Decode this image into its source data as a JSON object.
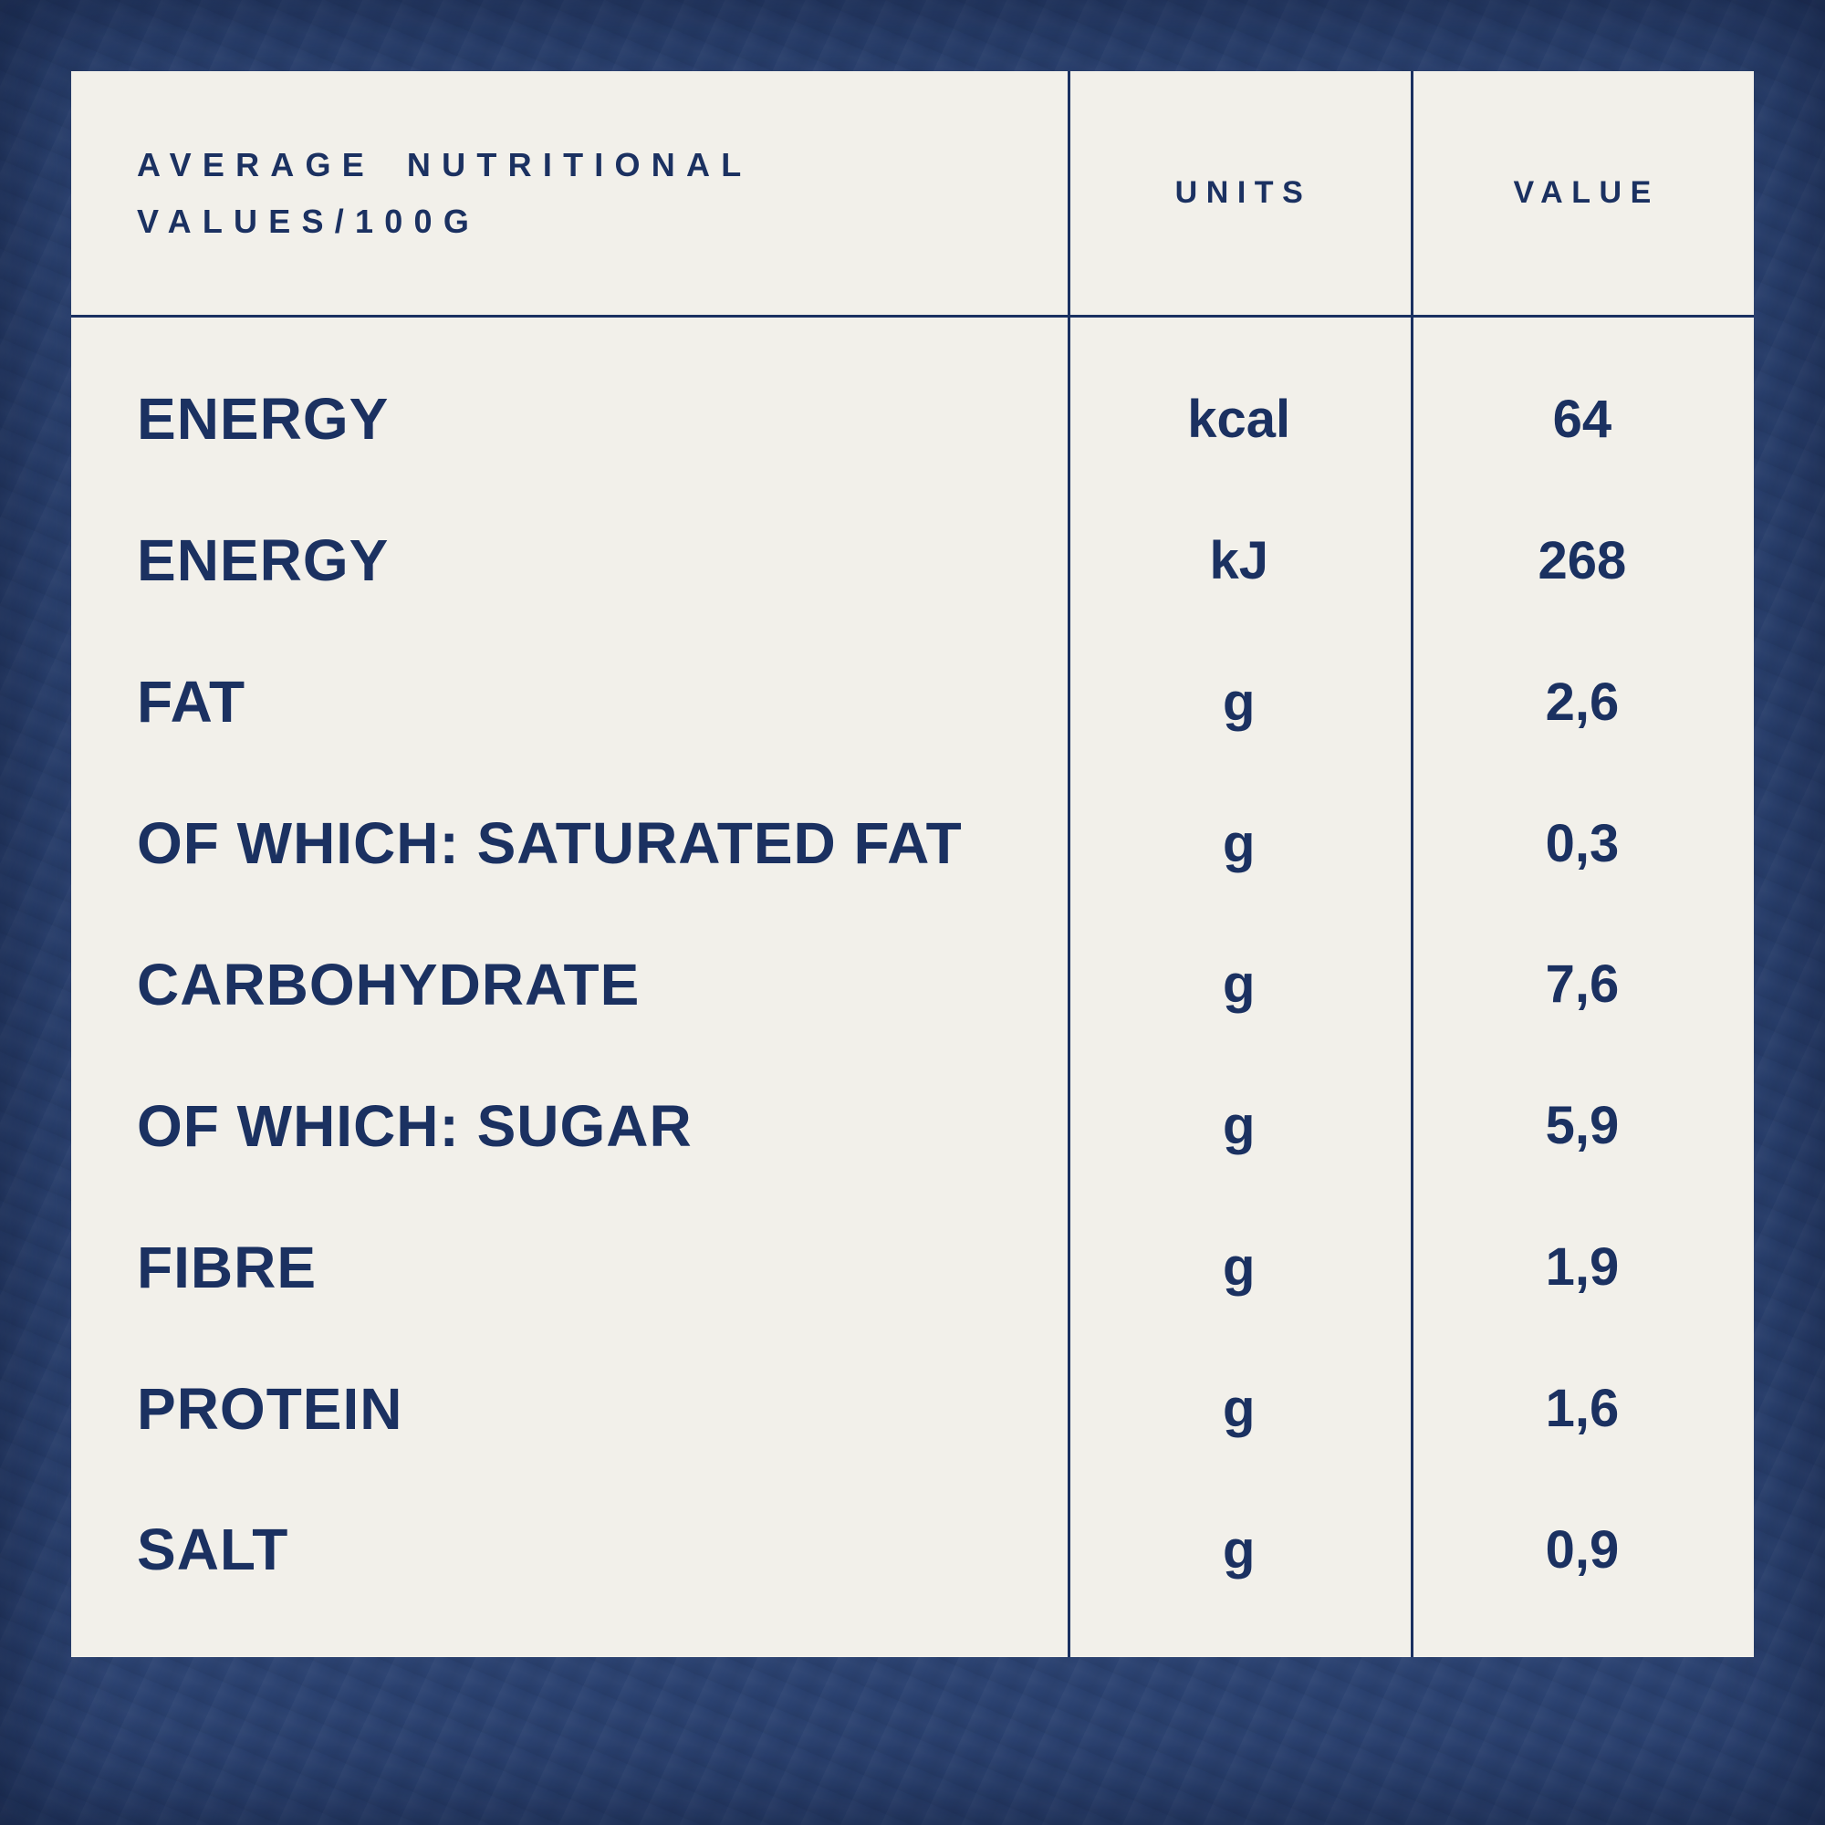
{
  "colors": {
    "background": "#2b4271",
    "panel": "#f2f0ea",
    "text": "#1b3161"
  },
  "table": {
    "header": {
      "title_line1": "AVERAGE NUTRITIONAL",
      "title_line2": "VALUES/100G",
      "col_units": "UNITS",
      "col_value": "VALUE"
    },
    "rows": [
      {
        "label": "ENERGY",
        "unit": "kcal",
        "value": "64"
      },
      {
        "label": "ENERGY",
        "unit": "kJ",
        "value": "268"
      },
      {
        "label": "FAT",
        "unit": "g",
        "value": "2,6"
      },
      {
        "label": "OF WHICH: SATURATED FAT",
        "unit": "g",
        "value": "0,3"
      },
      {
        "label": "CARBOHYDRATE",
        "unit": "g",
        "value": "7,6"
      },
      {
        "label": "OF WHICH: SUGAR",
        "unit": "g",
        "value": "5,9"
      },
      {
        "label": "FIBRE",
        "unit": "g",
        "value": "1,9"
      },
      {
        "label": "PROTEIN",
        "unit": "g",
        "value": "1,6"
      },
      {
        "label": "SALT",
        "unit": "g",
        "value": "0,9"
      }
    ]
  }
}
